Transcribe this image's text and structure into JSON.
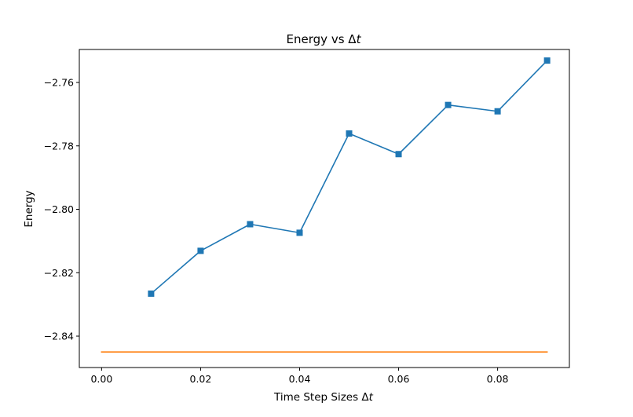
{
  "chart_data": {
    "type": "line",
    "title": "Energy vs Δ",
    "title_italic": "t",
    "xlabel": "Time Step Sizes Δ",
    "xlabel_italic": "t",
    "ylabel": "Energy",
    "xlim": [
      -0.0045,
      0.0945
    ],
    "ylim": [
      -2.8499,
      -2.7496
    ],
    "x_ticks": [
      {
        "value": 0.0,
        "label": "0.00"
      },
      {
        "value": 0.02,
        "label": "0.02"
      },
      {
        "value": 0.04,
        "label": "0.04"
      },
      {
        "value": 0.06,
        "label": "0.06"
      },
      {
        "value": 0.08,
        "label": "0.08"
      }
    ],
    "y_ticks": [
      {
        "value": -2.76,
        "label": "−2.76"
      },
      {
        "value": -2.78,
        "label": "−2.78"
      },
      {
        "value": -2.8,
        "label": "−2.80"
      },
      {
        "value": -2.82,
        "label": "−2.82"
      },
      {
        "value": -2.84,
        "label": "−2.84"
      }
    ],
    "grid": false,
    "series": [
      {
        "color": "#1f77b4",
        "marker": "square",
        "x": [
          0.01,
          0.02,
          0.03,
          0.04,
          0.05,
          0.06,
          0.07,
          0.08,
          0.09
        ],
        "y": [
          -2.8266,
          -2.8131,
          -2.8047,
          -2.8074,
          -2.7761,
          -2.7826,
          -2.7671,
          -2.7691,
          -2.7531
        ]
      },
      {
        "color": "#ff7f0e",
        "marker": "none",
        "x": [
          0.0,
          0.09
        ],
        "y": [
          -2.845,
          -2.845
        ]
      }
    ]
  }
}
